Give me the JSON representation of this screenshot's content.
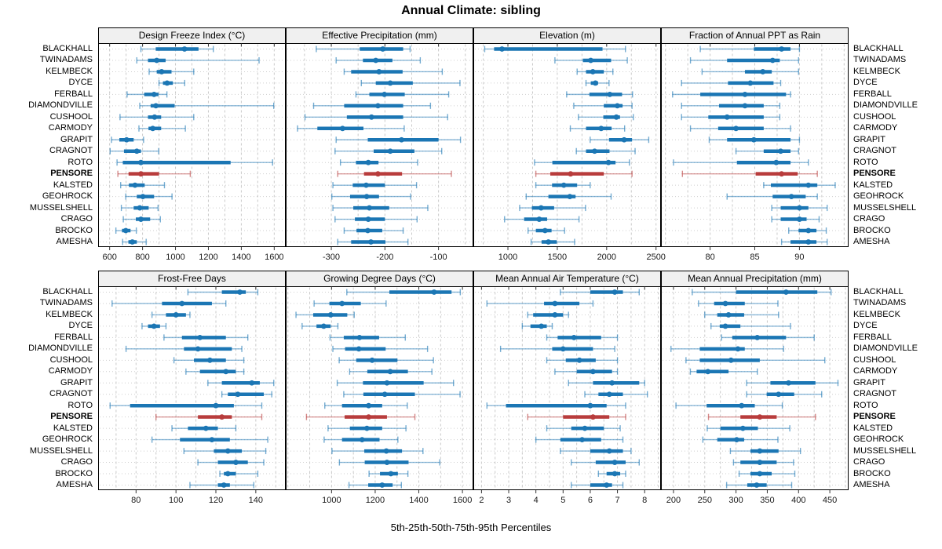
{
  "title": "Annual Climate: sibling",
  "caption": "5th-25th-50th-75th-95th Percentiles",
  "stations": [
    "BLACKHALL",
    "TWINADAMS",
    "KELMBECK",
    "DYCE",
    "FERBALL",
    "DIAMONDVILLE",
    "CUSHOOL",
    "CARMODY",
    "GRAPIT",
    "CRAGNOT",
    "ROTO",
    "PENSORE",
    "KALSTED",
    "GEOHROCK",
    "MUSSELSHELL",
    "CRAGO",
    "BROCKO",
    "AMESHA"
  ],
  "highlight_station": "PENSORE",
  "percentiles": [
    5,
    25,
    50,
    75,
    95
  ],
  "colors": {
    "series": "#1b76b4",
    "highlight": "#b83c3c",
    "grid": "#c9c9c9",
    "guide": "#cfcfcf",
    "header_bg": "#f0f0f0",
    "border": "#000000",
    "tick_label": "#1a1a1a"
  },
  "chart_data": [
    {
      "type": "percentile-dotplot",
      "title": "Design Freeze Index (°C)",
      "xlim": [
        530,
        1670
      ],
      "ticks": [
        600,
        800,
        1000,
        1200,
        1400,
        1600
      ],
      "minor_step": 100,
      "values": [
        [
          790,
          880,
          1055,
          1140,
          1230
        ],
        [
          765,
          833,
          886,
          940,
          1508
        ],
        [
          840,
          886,
          916,
          976,
          1111
        ],
        [
          900,
          924,
          949,
          984,
          1056
        ],
        [
          706,
          810,
          870,
          897,
          948
        ],
        [
          783,
          849,
          881,
          995,
          1597
        ],
        [
          663,
          833,
          873,
          913,
          1111
        ],
        [
          778,
          836,
          862,
          913,
          1060
        ],
        [
          611,
          659,
          703,
          746,
          806
        ],
        [
          603,
          687,
          765,
          790,
          898
        ],
        [
          645,
          680,
          790,
          1335,
          1590
        ],
        [
          650,
          715,
          790,
          900,
          1090
        ],
        [
          667,
          717,
          754,
          813,
          933
        ],
        [
          698,
          765,
          802,
          870,
          979
        ],
        [
          671,
          746,
          783,
          837,
          894
        ],
        [
          683,
          759,
          790,
          846,
          908
        ],
        [
          638,
          675,
          698,
          727,
          762
        ],
        [
          679,
          714,
          738,
          765,
          822
        ]
      ]
    },
    {
      "type": "percentile-dotplot",
      "title": "Effective Precipitation (mm)",
      "xlim": [
        -385,
        -35
      ],
      "ticks": [
        -300,
        -200,
        -100
      ],
      "minor_step": 50,
      "values": [
        [
          -328,
          -247,
          -204,
          -166,
          -153
        ],
        [
          -291,
          -241,
          -217,
          -186,
          -134
        ],
        [
          -276,
          -263,
          -211,
          -167,
          -93
        ],
        [
          -244,
          -217,
          -190,
          -148,
          -60
        ],
        [
          -254,
          -229,
          -201,
          -163,
          -81
        ],
        [
          -333,
          -276,
          -213,
          -166,
          -115
        ],
        [
          -349,
          -271,
          -225,
          -166,
          -83
        ],
        [
          -363,
          -326,
          -279,
          -240,
          -164
        ],
        [
          -291,
          -232,
          -169,
          -100,
          -59
        ],
        [
          -293,
          -221,
          -190,
          -145,
          -94
        ],
        [
          -283,
          -254,
          -231,
          -212,
          -139
        ],
        [
          -288,
          -239,
          -213,
          -168,
          -76
        ],
        [
          -297,
          -260,
          -235,
          -200,
          -141
        ],
        [
          -299,
          -265,
          -234,
          -211,
          -152
        ],
        [
          -297,
          -259,
          -229,
          -192,
          -120
        ],
        [
          -293,
          -256,
          -231,
          -200,
          -140
        ],
        [
          -276,
          -253,
          -232,
          -205,
          -166
        ],
        [
          -288,
          -263,
          -226,
          -199,
          -157
        ]
      ]
    },
    {
      "type": "percentile-dotplot",
      "title": "Elevation (m)",
      "xlim": [
        650,
        2550
      ],
      "ticks": [
        1000,
        1500,
        2000,
        2500
      ],
      "minor_step": 250,
      "values": [
        [
          765,
          860,
          940,
          1958,
          2190
        ],
        [
          1476,
          1759,
          1839,
          2045,
          2209
        ],
        [
          1701,
          1791,
          1860,
          1971,
          2063
        ],
        [
          1791,
          1839,
          1886,
          1913,
          2024
        ],
        [
          1595,
          1825,
          2032,
          2156,
          2262
        ],
        [
          1667,
          1971,
          2108,
          2161,
          2257
        ],
        [
          1714,
          1966,
          2098,
          2135,
          2270
        ],
        [
          1632,
          1791,
          1944,
          2050,
          2182
        ],
        [
          1833,
          2024,
          2177,
          2257,
          2426
        ],
        [
          1693,
          1791,
          1878,
          2029,
          2288
        ],
        [
          1270,
          1450,
          2018,
          2090,
          2230
        ],
        [
          1283,
          1429,
          1635,
          1971,
          2257
        ],
        [
          1283,
          1447,
          1566,
          1701,
          1833
        ],
        [
          1185,
          1410,
          1627,
          1685,
          2045
        ],
        [
          1119,
          1243,
          1336,
          1468,
          1786
        ],
        [
          966,
          1164,
          1317,
          1397,
          1720
        ],
        [
          1204,
          1283,
          1376,
          1442,
          1574
        ],
        [
          1235,
          1341,
          1410,
          1495,
          1675
        ]
      ]
    },
    {
      "type": "percentile-dotplot",
      "title": "Fraction of Annual PPT as Rain",
      "xlim": [
        74.5,
        95.5
      ],
      "ticks": [
        80,
        85,
        90
      ],
      "minor_step": 2.5,
      "values": [
        [
          78.9,
          84.9,
          88.0,
          89.0,
          90.0
        ],
        [
          77.8,
          81.9,
          87.0,
          87.8,
          89.9
        ],
        [
          79.1,
          83.9,
          85.9,
          86.9,
          89.9
        ],
        [
          76.8,
          82.0,
          84.5,
          87.1,
          87.9
        ],
        [
          75.8,
          78.9,
          83.9,
          88.5,
          89.0
        ],
        [
          76.8,
          81.0,
          83.9,
          86.0,
          87.8
        ],
        [
          76.8,
          79.8,
          81.9,
          86.0,
          87.8
        ],
        [
          77.8,
          80.9,
          82.9,
          86.0,
          89.0
        ],
        [
          79.9,
          81.9,
          84.9,
          89.0,
          90.0
        ],
        [
          82.9,
          86.0,
          87.9,
          89.0,
          89.9
        ],
        [
          75.9,
          83.0,
          87.4,
          89.0,
          91.0
        ],
        [
          76.9,
          85.1,
          88.0,
          89.8,
          92.0
        ],
        [
          86.0,
          86.8,
          91.0,
          92.0,
          94.0
        ],
        [
          81.9,
          87.0,
          89.1,
          90.7,
          92.0
        ],
        [
          86.9,
          87.9,
          90.0,
          91.0,
          93.1
        ],
        [
          86.9,
          87.9,
          90.0,
          90.8,
          92.2
        ],
        [
          88.8,
          89.9,
          91.0,
          91.9,
          93.0
        ],
        [
          88.0,
          89.0,
          91.0,
          91.9,
          93.1
        ]
      ]
    },
    {
      "type": "percentile-dotplot",
      "title": "Frost-Free Days",
      "xlim": [
        61,
        155
      ],
      "ticks": [
        80,
        100,
        120,
        140
      ],
      "minor_step": 10,
      "values": [
        [
          106,
          123,
          132,
          135,
          141
        ],
        [
          68,
          93,
          103,
          118,
          125
        ],
        [
          88,
          95,
          100,
          105,
          107
        ],
        [
          83,
          86,
          89,
          92,
          95
        ],
        [
          94,
          103,
          112,
          125,
          136
        ],
        [
          75,
          104,
          111,
          128,
          133
        ],
        [
          99,
          109,
          117,
          125,
          134
        ],
        [
          105,
          112,
          125,
          130,
          134
        ],
        [
          116,
          123,
          138,
          142,
          149
        ],
        [
          123,
          126,
          131,
          144,
          148
        ],
        [
          67,
          77,
          120,
          129,
          143
        ],
        [
          90,
          111,
          123,
          128,
          143
        ],
        [
          98,
          106,
          115,
          121,
          130
        ],
        [
          88,
          102,
          118,
          127,
          146
        ],
        [
          104,
          119,
          126,
          133,
          145
        ],
        [
          111,
          121,
          130,
          136,
          144
        ],
        [
          122,
          124,
          126,
          130,
          141
        ],
        [
          107,
          121,
          124,
          127,
          139
        ]
      ]
    },
    {
      "type": "percentile-dotplot",
      "title": "Growing Degree Days (°C)",
      "xlim": [
        790,
        1650
      ],
      "ticks": [
        1000,
        1200,
        1400,
        1600
      ],
      "minor_step": 100,
      "values": [
        [
          1070,
          1265,
          1470,
          1550,
          1590
        ],
        [
          920,
          990,
          1048,
          1134,
          1250
        ],
        [
          837,
          916,
          996,
          1072,
          1104
        ],
        [
          865,
          931,
          964,
          996,
          1029
        ],
        [
          993,
          1056,
          1128,
          1218,
          1338
        ],
        [
          1006,
          1062,
          1125,
          1248,
          1440
        ],
        [
          1035,
          1113,
          1186,
          1302,
          1467
        ],
        [
          1083,
          1164,
          1269,
          1350,
          1460
        ],
        [
          1026,
          1144,
          1254,
          1422,
          1559
        ],
        [
          1056,
          1146,
          1244,
          1382,
          1589
        ],
        [
          969,
          1048,
          1170,
          1232,
          1347
        ],
        [
          885,
          1060,
          1170,
          1254,
          1382
        ],
        [
          984,
          1084,
          1162,
          1232,
          1341
        ],
        [
          966,
          1048,
          1140,
          1220,
          1304
        ],
        [
          1002,
          1150,
          1251,
          1323,
          1419
        ],
        [
          1036,
          1152,
          1254,
          1353,
          1496
        ],
        [
          1172,
          1222,
          1272,
          1304,
          1350
        ],
        [
          1080,
          1168,
          1232,
          1280,
          1320
        ]
      ]
    },
    {
      "type": "percentile-dotplot",
      "title": "Mean Annual Air Temperature (°C)",
      "xlim": [
        1.7,
        8.6
      ],
      "ticks": [
        2,
        3,
        4,
        5,
        6,
        7,
        8
      ],
      "minor_step": 0.5,
      "values": [
        [
          4.9,
          6.0,
          6.9,
          7.2,
          7.8
        ],
        [
          2.2,
          4.3,
          4.7,
          5.6,
          6.1
        ],
        [
          3.7,
          3.9,
          4.7,
          5.0,
          5.2
        ],
        [
          3.5,
          3.8,
          4.2,
          4.4,
          4.6
        ],
        [
          4.4,
          4.8,
          5.4,
          6.4,
          7.0
        ],
        [
          2.7,
          4.6,
          5.0,
          6.1,
          6.9
        ],
        [
          4.4,
          5.1,
          5.6,
          6.2,
          7.0
        ],
        [
          4.7,
          5.5,
          6.1,
          6.8,
          7.0
        ],
        [
          5.2,
          6.1,
          6.8,
          7.8,
          8.0
        ],
        [
          5.8,
          6.3,
          6.7,
          7.2,
          8.1
        ],
        [
          2.2,
          2.9,
          6.0,
          6.6,
          7.3
        ],
        [
          3.7,
          5.0,
          6.1,
          6.7,
          7.3
        ],
        [
          4.4,
          5.3,
          5.8,
          6.5,
          7.1
        ],
        [
          4.0,
          4.9,
          5.7,
          6.4,
          7.2
        ],
        [
          4.9,
          6.0,
          6.7,
          7.2,
          7.5
        ],
        [
          5.3,
          6.2,
          6.9,
          7.3,
          7.8
        ],
        [
          6.3,
          6.6,
          6.9,
          7.1,
          7.3
        ],
        [
          5.3,
          6.0,
          6.6,
          6.8,
          7.2
        ]
      ]
    },
    {
      "type": "percentile-dotplot",
      "title": "Mean Annual Precipitation (mm)",
      "xlim": [
        180,
        480
      ],
      "ticks": [
        200,
        250,
        300,
        350,
        400,
        450
      ],
      "minor_step": 25,
      "values": [
        [
          230,
          300,
          380,
          430,
          452
        ],
        [
          240,
          265,
          283,
          314,
          367
        ],
        [
          250,
          270,
          288,
          313,
          368
        ],
        [
          260,
          274,
          283,
          307,
          387
        ],
        [
          277,
          294,
          334,
          380,
          425
        ],
        [
          196,
          242,
          303,
          314,
          376
        ],
        [
          220,
          242,
          292,
          338,
          442
        ],
        [
          227,
          237,
          255,
          288,
          334
        ],
        [
          317,
          355,
          384,
          427,
          463
        ],
        [
          317,
          349,
          368,
          393,
          437
        ],
        [
          204,
          253,
          309,
          330,
          374
        ],
        [
          256,
          307,
          338,
          365,
          427
        ],
        [
          254,
          275,
          311,
          335,
          386
        ],
        [
          247,
          270,
          301,
          313,
          367
        ],
        [
          291,
          323,
          338,
          368,
          403
        ],
        [
          296,
          307,
          338,
          365,
          392
        ],
        [
          305,
          323,
          338,
          357,
          394
        ],
        [
          285,
          318,
          333,
          349,
          389
        ]
      ]
    }
  ]
}
